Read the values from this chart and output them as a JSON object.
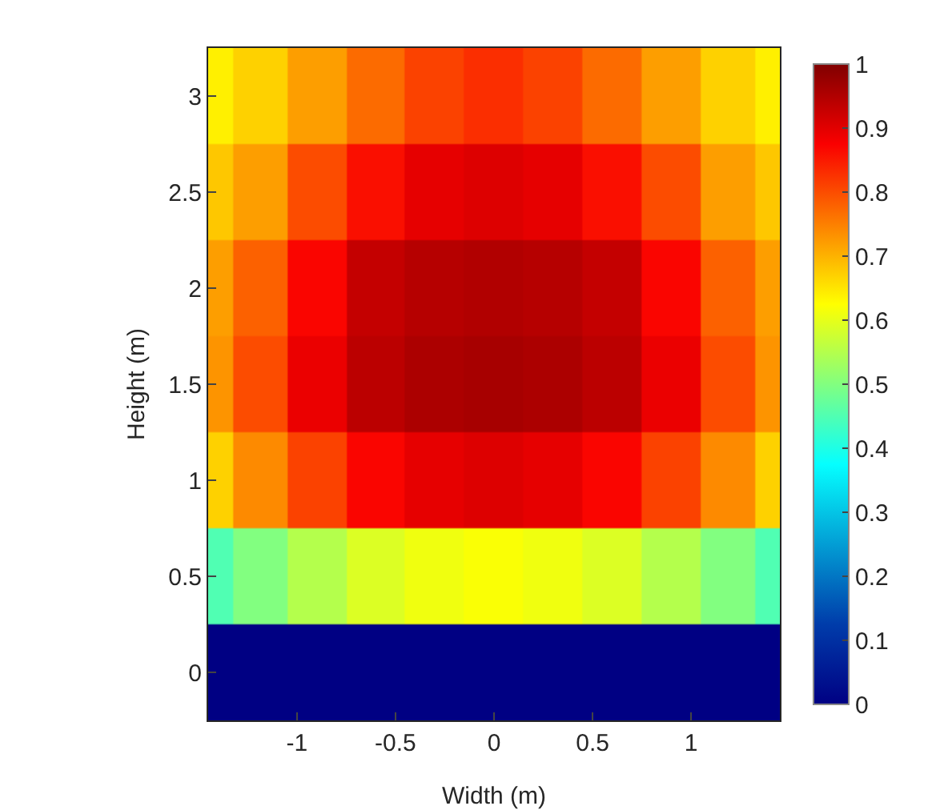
{
  "chart_data": {
    "type": "heatmap",
    "xlabel": "Width (m)",
    "ylabel": "Height (m)",
    "x": [
      -1.45,
      -1.2,
      -0.9,
      -0.6,
      -0.3,
      0,
      0.3,
      0.6,
      0.9,
      1.2,
      1.45
    ],
    "y_categories": [
      "3",
      "2.5",
      "2",
      "1.5",
      "1",
      "0.5",
      "0"
    ],
    "cells": [
      [
        0.64,
        0.67,
        0.72,
        0.77,
        0.81,
        0.83,
        0.81,
        0.77,
        0.72,
        0.67,
        0.64
      ],
      [
        0.68,
        0.72,
        0.8,
        0.86,
        0.895,
        0.905,
        0.895,
        0.86,
        0.8,
        0.72,
        0.68
      ],
      [
        0.72,
        0.78,
        0.87,
        0.93,
        0.945,
        0.95,
        0.945,
        0.93,
        0.87,
        0.78,
        0.72
      ],
      [
        0.73,
        0.8,
        0.89,
        0.94,
        0.955,
        0.96,
        0.955,
        0.94,
        0.89,
        0.8,
        0.73
      ],
      [
        0.67,
        0.74,
        0.81,
        0.87,
        0.895,
        0.905,
        0.895,
        0.87,
        0.81,
        0.74,
        0.67
      ],
      [
        0.45,
        0.5,
        0.55,
        0.59,
        0.61,
        0.62,
        0.61,
        0.59,
        0.55,
        0.5,
        0.45
      ],
      [
        0,
        0,
        0,
        0,
        0,
        0,
        0,
        0,
        0,
        0,
        0
      ]
    ],
    "clim": [
      0,
      1
    ],
    "cticks": [
      0,
      0.1,
      0.2,
      0.3,
      0.4,
      0.5,
      0.6,
      0.7,
      0.8,
      0.9,
      1
    ],
    "xlim": [
      -1.45,
      1.45
    ],
    "xticks": [
      -1,
      -0.5,
      0,
      0.5,
      1
    ]
  }
}
